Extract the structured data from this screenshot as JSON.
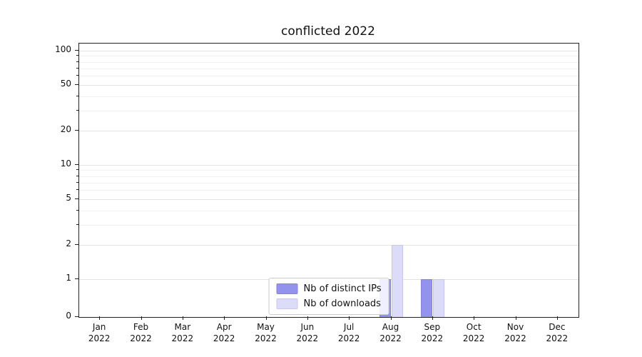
{
  "chart_data": {
    "type": "bar",
    "title": "conflicted 2022",
    "year_label": "2022",
    "categories": [
      "Jan",
      "Feb",
      "Mar",
      "Apr",
      "May",
      "Jun",
      "Jul",
      "Aug",
      "Sep",
      "Oct",
      "Nov",
      "Dec"
    ],
    "series": [
      {
        "name": "Nb of distinct IPs",
        "color": "#9393ee",
        "edge": "#8484e2",
        "values": [
          0,
          0,
          0,
          0,
          0,
          0,
          0,
          1,
          1,
          0,
          0,
          0
        ]
      },
      {
        "name": "Nb of downloads",
        "color": "#dcdcf8",
        "edge": "#c6c6f0",
        "values": [
          0,
          0,
          0,
          0,
          0,
          0,
          0,
          2,
          1,
          0,
          0,
          0
        ]
      }
    ],
    "yscale": "symlog",
    "yticks": [
      0,
      1,
      2,
      5,
      10,
      20,
      50,
      100
    ],
    "yticks_minor": [
      3,
      4,
      6,
      7,
      8,
      9,
      30,
      40,
      60,
      70,
      80,
      90
    ],
    "ylim": [
      0,
      115
    ],
    "grid": "horizontal",
    "legend_position": "lower-center"
  }
}
